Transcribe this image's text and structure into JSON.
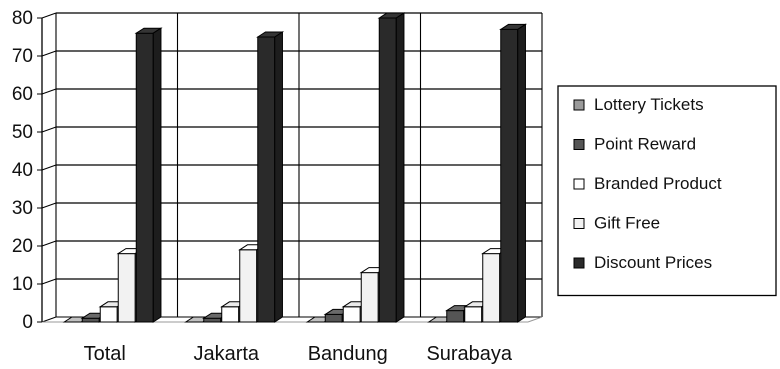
{
  "chart_data": {
    "type": "bar",
    "style": "3d-clustered-column",
    "categories": [
      "Total",
      "Jakarta",
      "Bandung",
      "Surabaya"
    ],
    "series": [
      {
        "name": "Lottery Tickets",
        "values": [
          0,
          0,
          0,
          0
        ],
        "color": "#9a9a9a"
      },
      {
        "name": "Point Reward",
        "values": [
          1,
          1,
          2,
          3
        ],
        "color": "#555555"
      },
      {
        "name": "Branded Product",
        "values": [
          4,
          4,
          4,
          4
        ],
        "color": "#ffffff"
      },
      {
        "name": "Gift Free",
        "values": [
          18,
          19,
          13,
          18
        ],
        "color": "#f2f2f2"
      },
      {
        "name": "Discount Prices",
        "values": [
          76,
          75,
          80,
          77
        ],
        "color": "#2a2a2a"
      }
    ],
    "yticks": [
      "0",
      "10",
      "20",
      "30",
      "40",
      "50",
      "60",
      "70",
      "80"
    ],
    "ylim": [
      0,
      80
    ],
    "grid": true,
    "legend_position": "right"
  }
}
